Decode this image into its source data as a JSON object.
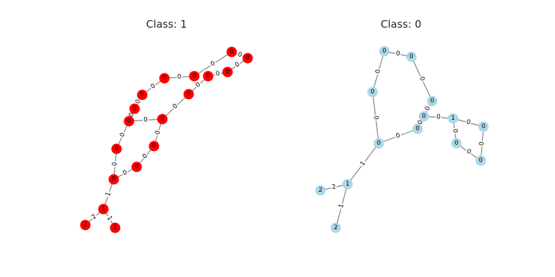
{
  "graphs": [
    {
      "title": "Class: 1",
      "node_color": "#ff0000",
      "nodes": [
        {
          "id": 0,
          "label": "0"
        },
        {
          "id": 1,
          "label": "0"
        },
        {
          "id": 2,
          "label": "0"
        },
        {
          "id": 3,
          "label": "0"
        },
        {
          "id": 4,
          "label": "0"
        },
        {
          "id": 5,
          "label": "0"
        },
        {
          "id": 6,
          "label": "0"
        },
        {
          "id": 7,
          "label": "0"
        },
        {
          "id": 8,
          "label": "0"
        },
        {
          "id": 9,
          "label": "0"
        },
        {
          "id": 10,
          "label": "0"
        },
        {
          "id": 11,
          "label": "0"
        },
        {
          "id": 12,
          "label": "0"
        },
        {
          "id": 13,
          "label": "0"
        },
        {
          "id": 14,
          "label": "0"
        },
        {
          "id": 15,
          "label": "0"
        },
        {
          "id": 16,
          "label": "1"
        },
        {
          "id": 17,
          "label": "2"
        },
        {
          "id": 18,
          "label": "2"
        }
      ],
      "edges": [
        {
          "from": 0,
          "to": 1,
          "label": "0"
        },
        {
          "from": 1,
          "to": 2,
          "label": "0"
        },
        {
          "from": 0,
          "to": 3,
          "label": "0"
        },
        {
          "from": 3,
          "to": 4,
          "label": "0"
        },
        {
          "from": 4,
          "to": 5,
          "label": "0"
        },
        {
          "from": 5,
          "to": 6,
          "label": "0"
        },
        {
          "from": 6,
          "to": 7,
          "label": "0"
        },
        {
          "from": 7,
          "to": 8,
          "label": "0"
        },
        {
          "from": 7,
          "to": 9,
          "label": "0"
        },
        {
          "from": 9,
          "to": 10,
          "label": "0"
        },
        {
          "from": 10,
          "to": 11,
          "label": "0"
        },
        {
          "from": 11,
          "to": 12,
          "label": "0"
        },
        {
          "from": 12,
          "to": 13,
          "label": "0"
        },
        {
          "from": 13,
          "to": 14,
          "label": "0"
        },
        {
          "from": 14,
          "to": 15,
          "label": "0"
        },
        {
          "from": 15,
          "to": 2,
          "label": "0"
        },
        {
          "from": 14,
          "to": 16,
          "label": "1"
        },
        {
          "from": 16,
          "to": 17,
          "label": "2"
        },
        {
          "from": 16,
          "to": 18,
          "label": "1"
        }
      ]
    },
    {
      "title": "Class: 0",
      "node_color": "#add8e6",
      "nodes": [
        {
          "id": 0,
          "label": "0"
        },
        {
          "id": 1,
          "label": "0"
        },
        {
          "id": 2,
          "label": "0"
        },
        {
          "id": 3,
          "label": "0"
        },
        {
          "id": 4,
          "label": "0"
        },
        {
          "id": 5,
          "label": "0"
        },
        {
          "id": 6,
          "label": "0"
        },
        {
          "id": 7,
          "label": "1"
        },
        {
          "id": 8,
          "label": "0"
        },
        {
          "id": 9,
          "label": "0"
        },
        {
          "id": 10,
          "label": "0"
        },
        {
          "id": 11,
          "label": "1"
        },
        {
          "id": 12,
          "label": "2"
        },
        {
          "id": 13,
          "label": "2"
        }
      ],
      "edges": [
        {
          "from": 0,
          "to": 1,
          "label": "0"
        },
        {
          "from": 0,
          "to": 2,
          "label": "0"
        },
        {
          "from": 1,
          "to": 3,
          "label": "0"
        },
        {
          "from": 2,
          "to": 4,
          "label": "0"
        },
        {
          "from": 3,
          "to": 5,
          "label": "0"
        },
        {
          "from": 4,
          "to": 6,
          "label": "0"
        },
        {
          "from": 5,
          "to": 6,
          "label": "0"
        },
        {
          "from": 5,
          "to": 7,
          "label": "0"
        },
        {
          "from": 7,
          "to": 8,
          "label": "0"
        },
        {
          "from": 8,
          "to": 9,
          "label": "0"
        },
        {
          "from": 9,
          "to": 10,
          "label": "0"
        },
        {
          "from": 10,
          "to": 7,
          "label": "0"
        },
        {
          "from": 4,
          "to": 11,
          "label": "1"
        },
        {
          "from": 11,
          "to": 12,
          "label": "2"
        },
        {
          "from": 11,
          "to": 13,
          "label": "1"
        }
      ]
    }
  ]
}
